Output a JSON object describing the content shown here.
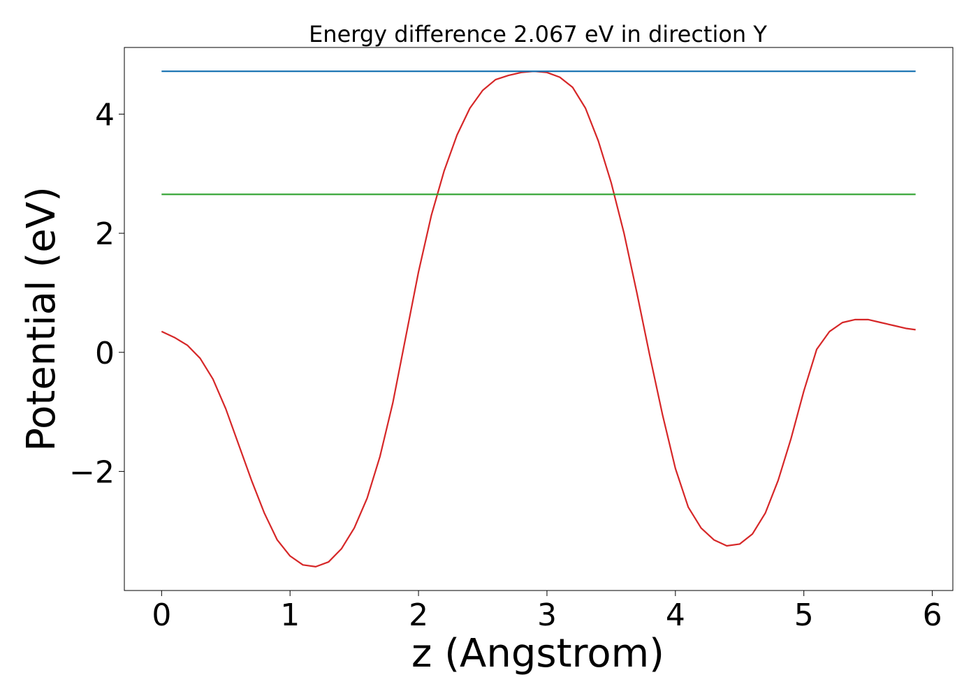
{
  "chart_data": {
    "type": "line",
    "title": "Energy difference 2.067 eV in direction Y",
    "xlabel": "z (Angstrom)",
    "ylabel": "Potential (eV)",
    "xlim": [
      -0.29,
      6.16
    ],
    "ylim": [
      -4.0,
      5.12
    ],
    "xticks": [
      0,
      1,
      2,
      3,
      4,
      5,
      6
    ],
    "xtick_labels": [
      "0",
      "1",
      "2",
      "3",
      "4",
      "5",
      "6"
    ],
    "yticks": [
      -2,
      0,
      2,
      4
    ],
    "ytick_labels": [
      "−2",
      "0",
      "2",
      "4"
    ],
    "grid": false,
    "legend": false,
    "series": [
      {
        "color": "#d62728",
        "x": [
          0,
          0.1,
          0.2,
          0.3,
          0.4,
          0.5,
          0.6,
          0.7,
          0.8,
          0.9,
          1.0,
          1.1,
          1.2,
          1.3,
          1.4,
          1.5,
          1.6,
          1.7,
          1.8,
          1.9,
          2.0,
          2.1,
          2.2,
          2.3,
          2.4,
          2.5,
          2.6,
          2.7,
          2.8,
          2.9,
          3.0,
          3.1,
          3.2,
          3.3,
          3.4,
          3.5,
          3.6,
          3.7,
          3.8,
          3.9,
          4.0,
          4.1,
          4.2,
          4.3,
          4.4,
          4.5,
          4.6,
          4.7,
          4.8,
          4.9,
          5.0,
          5.1,
          5.2,
          5.3,
          5.4,
          5.5,
          5.6,
          5.7,
          5.8,
          5.87
        ],
        "y": [
          0.35,
          0.25,
          0.12,
          -0.1,
          -0.45,
          -0.95,
          -1.55,
          -2.15,
          -2.7,
          -3.15,
          -3.42,
          -3.57,
          -3.6,
          -3.52,
          -3.3,
          -2.95,
          -2.45,
          -1.75,
          -0.85,
          0.25,
          1.35,
          2.3,
          3.05,
          3.65,
          4.1,
          4.4,
          4.58,
          4.65,
          4.7,
          4.72,
          4.7,
          4.62,
          4.45,
          4.1,
          3.55,
          2.85,
          2.0,
          1.0,
          -0.05,
          -1.05,
          -1.95,
          -2.6,
          -2.95,
          -3.15,
          -3.25,
          -3.22,
          -3.05,
          -2.7,
          -2.15,
          -1.45,
          -0.65,
          0.05,
          0.35,
          0.5,
          0.55,
          0.55,
          0.5,
          0.45,
          0.4,
          0.38
        ]
      },
      {
        "color": "#1f77b4",
        "x": [
          0,
          5.87
        ],
        "y": [
          4.72,
          4.72
        ]
      },
      {
        "color": "#2ca02c",
        "x": [
          0,
          5.87
        ],
        "y": [
          2.653,
          2.653
        ]
      }
    ]
  }
}
